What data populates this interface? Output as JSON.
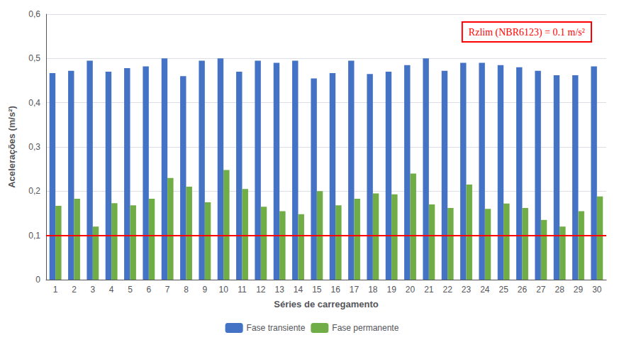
{
  "chart_data": {
    "type": "bar",
    "categories": [
      "1",
      "2",
      "3",
      "4",
      "5",
      "6",
      "7",
      "8",
      "9",
      "10",
      "11",
      "12",
      "13",
      "14",
      "15",
      "16",
      "17",
      "18",
      "19",
      "20",
      "21",
      "22",
      "23",
      "24",
      "25",
      "26",
      "27",
      "28",
      "29",
      "30"
    ],
    "series": [
      {
        "name": "Fase transiente",
        "color": "#4472C4",
        "values": [
          0.467,
          0.472,
          0.495,
          0.47,
          0.478,
          0.482,
          0.5,
          0.46,
          0.495,
          0.5,
          0.47,
          0.495,
          0.49,
          0.495,
          0.455,
          0.467,
          0.495,
          0.465,
          0.47,
          0.485,
          0.5,
          0.472,
          0.49,
          0.49,
          0.485,
          0.48,
          0.472,
          0.462,
          0.462,
          0.482
        ]
      },
      {
        "name": "Fase permanente",
        "color": "#70AD47",
        "values": [
          0.167,
          0.183,
          0.12,
          0.173,
          0.168,
          0.183,
          0.23,
          0.21,
          0.175,
          0.248,
          0.205,
          0.165,
          0.155,
          0.148,
          0.2,
          0.168,
          0.183,
          0.195,
          0.193,
          0.24,
          0.17,
          0.162,
          0.215,
          0.16,
          0.172,
          0.162,
          0.135,
          0.12,
          0.155,
          0.188
        ]
      }
    ],
    "xlabel": "Séries de carregamento",
    "ylabel": "Acelerações (m/s²)",
    "ylim": [
      0,
      0.6
    ],
    "yticks": [
      0,
      {
        "value": 0.1,
        "label": "0,1"
      },
      {
        "value": 0.2,
        "label": "0,2"
      },
      {
        "value": 0.3,
        "label": "0,3"
      },
      {
        "value": 0.4,
        "label": "0,4"
      },
      {
        "value": 0.5,
        "label": "0,5"
      },
      {
        "value": 0.6,
        "label": "0,6"
      }
    ],
    "grid": true,
    "legend": "bottom",
    "reference_line": {
      "value": 0.1,
      "color": "#FF0000"
    },
    "annotations": [
      {
        "text": "Rzlim (NBR6123) = 0.1 m/s²",
        "color": "#FF0000"
      }
    ]
  }
}
